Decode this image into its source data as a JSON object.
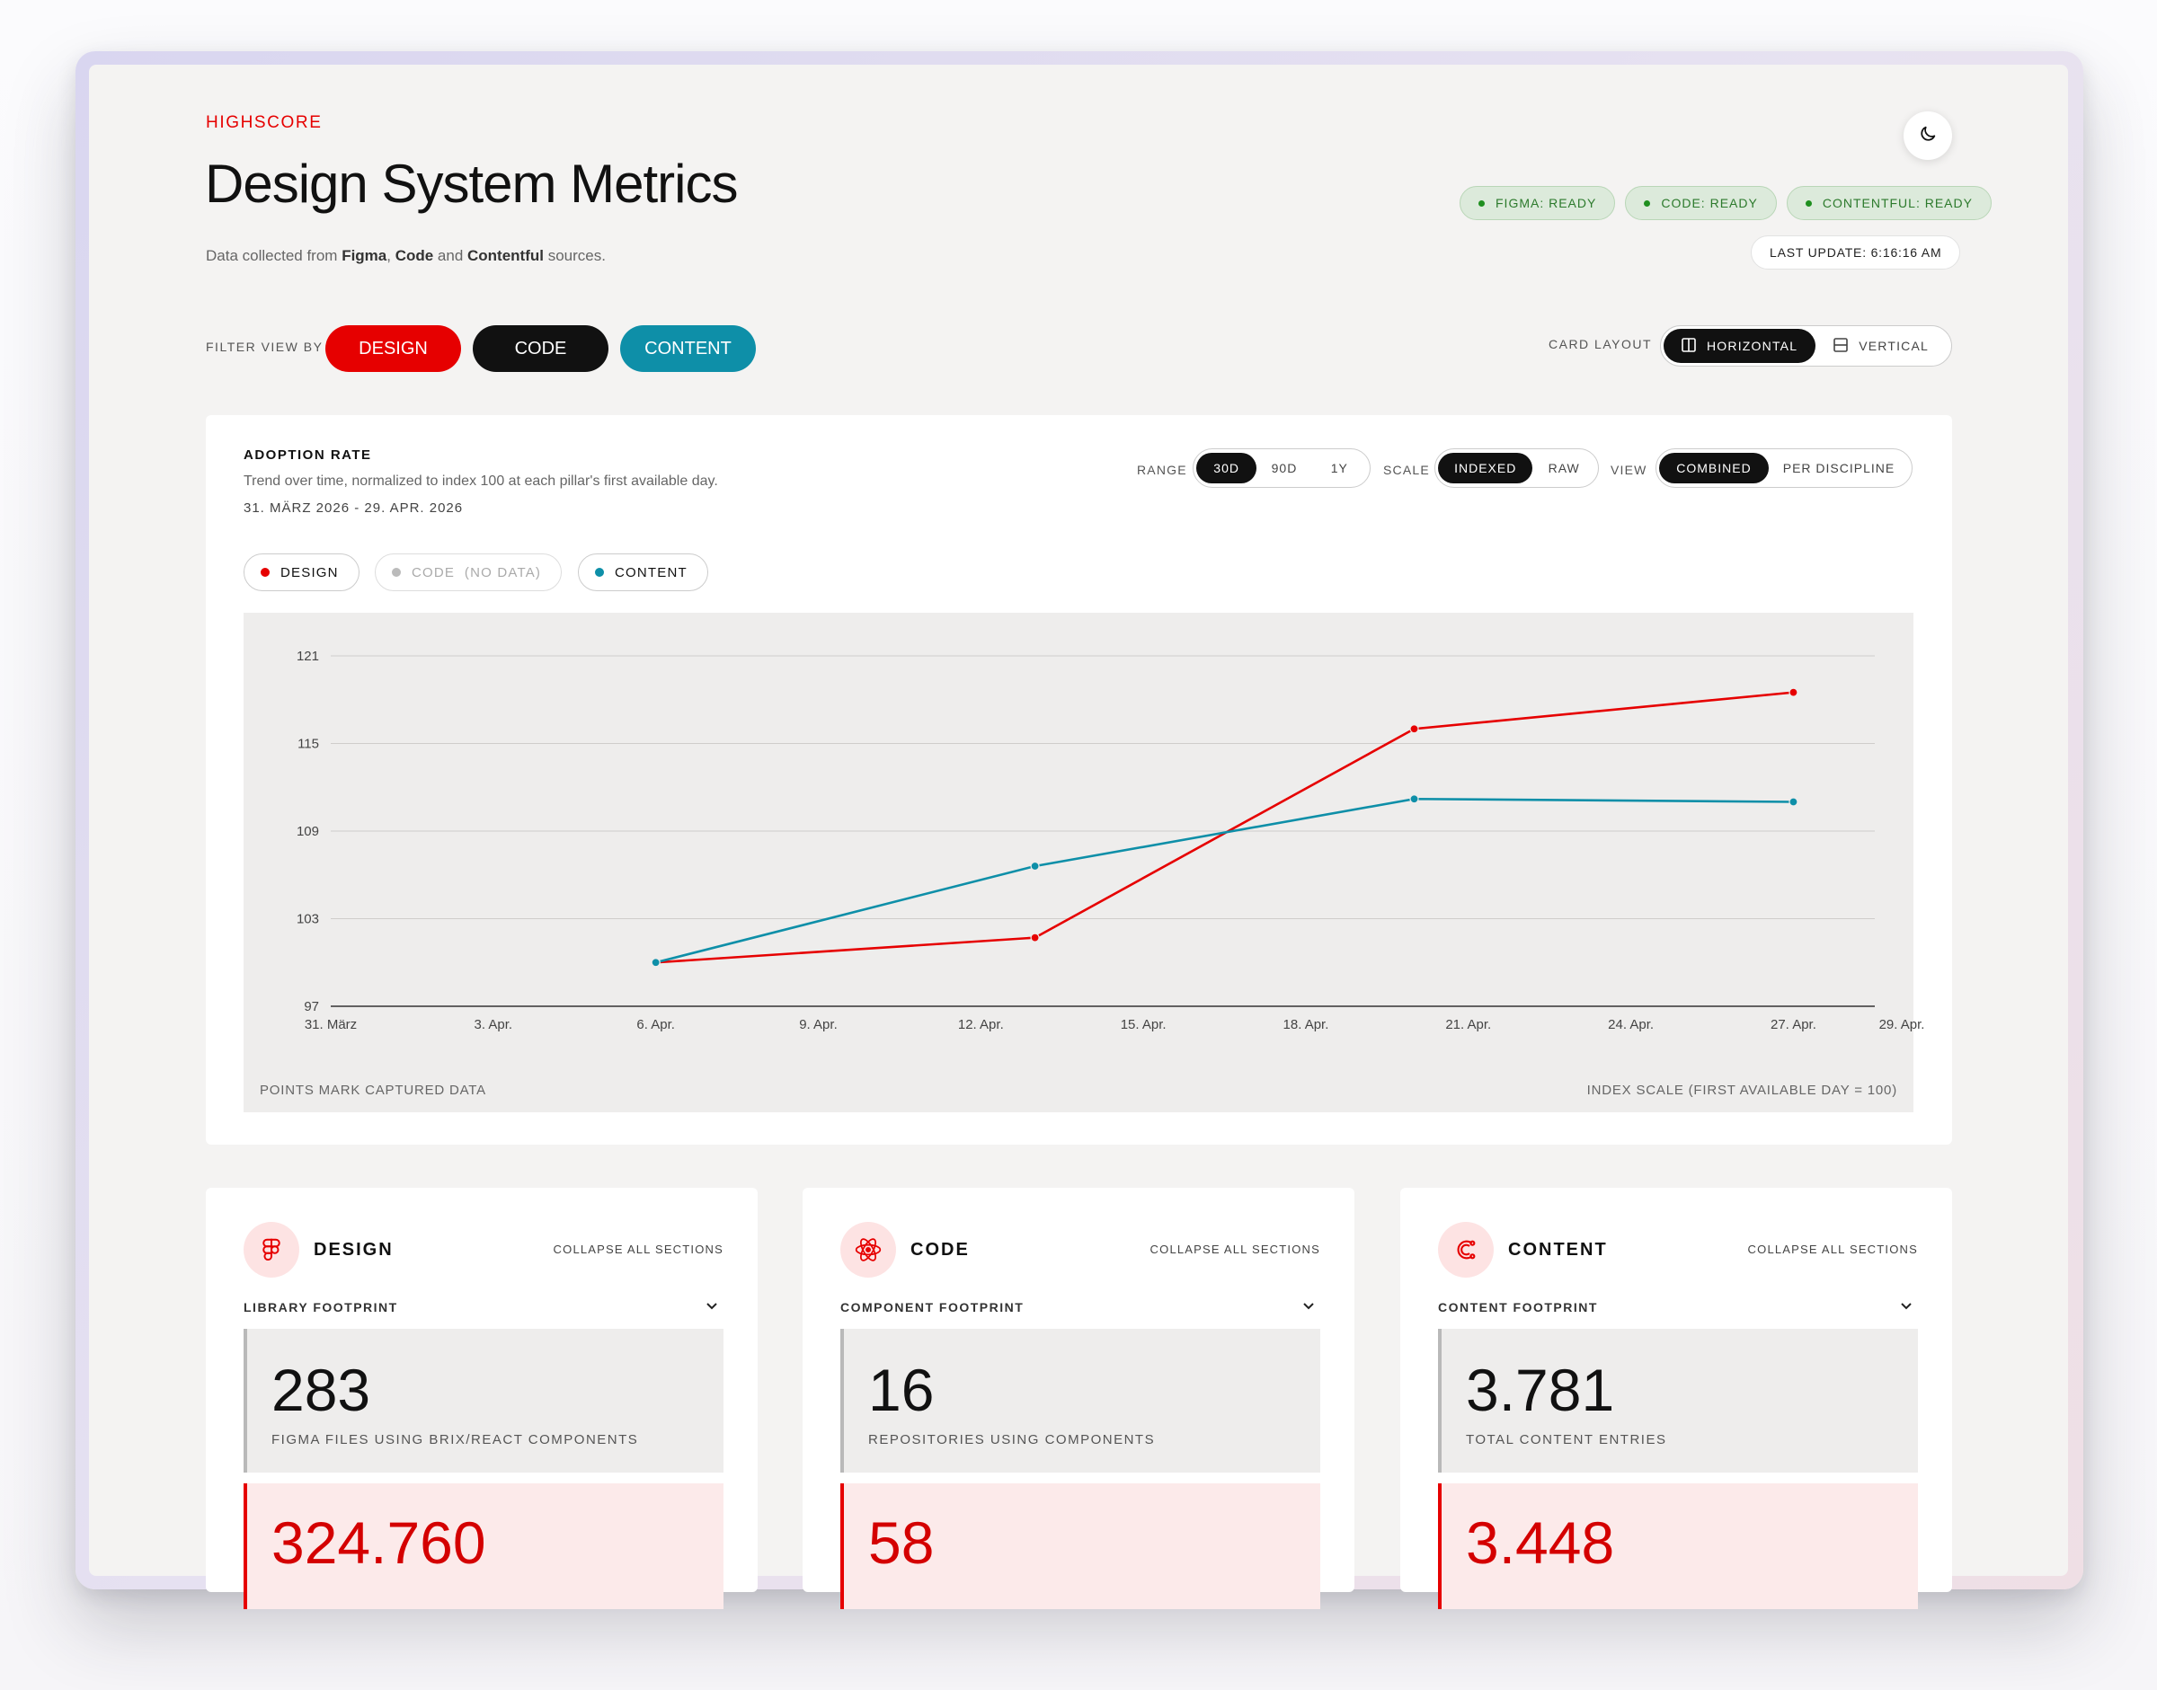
{
  "header": {
    "eyebrow": "HIGHSCORE",
    "title": "Design System Metrics",
    "subtitle_prefix": "Data collected from ",
    "subtitle_src1": "Figma",
    "subtitle_sep1": ", ",
    "subtitle_src2": "Code",
    "subtitle_sep2": " and ",
    "subtitle_src3": "Contentful",
    "subtitle_suffix": " sources."
  },
  "status": {
    "chips": [
      "FIGMA: READY",
      "CODE: READY",
      "CONTENTFUL: READY"
    ],
    "last_update": "LAST UPDATE: 6:16:16 AM",
    "color": "#2c7a2c"
  },
  "filter": {
    "label": "FILTER VIEW BY",
    "options": [
      {
        "label": "DESIGN",
        "color": "#e60000"
      },
      {
        "label": "CODE",
        "color": "#111111"
      },
      {
        "label": "CONTENT",
        "color": "#0e8fa8"
      }
    ]
  },
  "card_layout": {
    "label": "CARD LAYOUT",
    "options": [
      "HORIZONTAL",
      "VERTICAL"
    ],
    "selected": "HORIZONTAL"
  },
  "adoption": {
    "title": "ADOPTION RATE",
    "description": "Trend over time, normalized to index 100 at each pillar's first available day.",
    "date_range": "31. MÄRZ 2026 - 29. APR. 2026",
    "range_label": "RANGE",
    "range_options": [
      "30D",
      "90D",
      "1Y"
    ],
    "range_selected": "30D",
    "scale_label": "SCALE",
    "scale_options": [
      "INDEXED",
      "RAW"
    ],
    "scale_selected": "INDEXED",
    "view_label": "VIEW",
    "view_options": [
      "COMBINED",
      "PER DISCIPLINE"
    ],
    "view_selected": "COMBINED",
    "legend": [
      {
        "label": "DESIGN",
        "color": "#e60000",
        "enabled": true
      },
      {
        "label": "CODE  (NO DATA)",
        "color": "#bbbbbb",
        "enabled": false
      },
      {
        "label": "CONTENT",
        "color": "#0e8fa8",
        "enabled": true
      }
    ],
    "note_left": "POINTS MARK CAPTURED DATA",
    "note_right": "INDEX SCALE (FIRST AVAILABLE DAY = 100)"
  },
  "chart_data": {
    "type": "line",
    "x_ticks": [
      "31. März",
      "3. Apr.",
      "6. Apr.",
      "9. Apr.",
      "12. Apr.",
      "15. Apr.",
      "18. Apr.",
      "21. Apr.",
      "24. Apr.",
      "27. Apr.",
      "29. Apr."
    ],
    "x_tick_days": [
      0,
      3,
      6,
      9,
      12,
      15,
      18,
      21,
      24,
      27,
      29
    ],
    "ylim": [
      97,
      121
    ],
    "yticks": [
      97,
      103,
      109,
      115,
      121
    ],
    "grid": true,
    "series": [
      {
        "name": "DESIGN",
        "color": "#e60000",
        "x_days": [
          6,
          13,
          20,
          27
        ],
        "y": [
          100.0,
          101.7,
          116.0,
          118.5
        ]
      },
      {
        "name": "CONTENT",
        "color": "#0e8fa8",
        "x_days": [
          6,
          13,
          20,
          27
        ],
        "y": [
          100.0,
          106.6,
          111.2,
          111.0
        ]
      }
    ]
  },
  "pillars": [
    {
      "name": "DESIGN",
      "icon": "figma-icon",
      "collapse_label": "COLLAPSE ALL SECTIONS",
      "section": "LIBRARY FOOTPRINT",
      "metric_value": "283",
      "metric_caption": "FIGMA FILES USING BRIX/REACT COMPONENTS",
      "secondary_value": "324.760"
    },
    {
      "name": "CODE",
      "icon": "react-icon",
      "collapse_label": "COLLAPSE ALL SECTIONS",
      "section": "COMPONENT FOOTPRINT",
      "metric_value": "16",
      "metric_caption": "REPOSITORIES USING COMPONENTS",
      "secondary_value": "58"
    },
    {
      "name": "CONTENT",
      "icon": "contentful-icon",
      "collapse_label": "COLLAPSE ALL SECTIONS",
      "section": "CONTENT FOOTPRINT",
      "metric_value": "3.781",
      "metric_caption": "TOTAL CONTENT ENTRIES",
      "secondary_value": "3.448"
    }
  ]
}
